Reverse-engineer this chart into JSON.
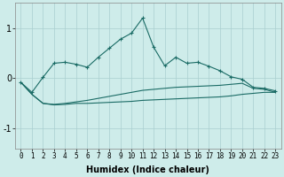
{
  "xlabel": "Humidex (Indice chaleur)",
  "background_color": "#ceecea",
  "grid_color": "#aacfcf",
  "line_color": "#1a6b65",
  "x": [
    0,
    1,
    2,
    3,
    4,
    5,
    6,
    7,
    8,
    9,
    10,
    11,
    12,
    13,
    14,
    15,
    16,
    17,
    18,
    19,
    20,
    21,
    22,
    23
  ],
  "line1": [
    -0.08,
    -0.28,
    0.02,
    0.3,
    0.32,
    0.28,
    0.22,
    0.42,
    0.6,
    0.78,
    0.9,
    1.2,
    0.62,
    0.25,
    0.42,
    0.3,
    0.32,
    0.24,
    0.15,
    0.03,
    -0.02,
    -0.18,
    -0.2,
    -0.25
  ],
  "line2": [
    -0.08,
    -0.32,
    -0.5,
    -0.52,
    -0.5,
    -0.47,
    -0.44,
    -0.4,
    -0.36,
    -0.32,
    -0.28,
    -0.24,
    -0.22,
    -0.2,
    -0.18,
    -0.17,
    -0.16,
    -0.15,
    -0.14,
    -0.12,
    -0.1,
    -0.2,
    -0.22,
    -0.28
  ],
  "line3": [
    -0.08,
    -0.32,
    -0.5,
    -0.53,
    -0.52,
    -0.5,
    -0.5,
    -0.49,
    -0.48,
    -0.47,
    -0.46,
    -0.44,
    -0.43,
    -0.42,
    -0.41,
    -0.4,
    -0.39,
    -0.38,
    -0.37,
    -0.35,
    -0.32,
    -0.3,
    -0.28,
    -0.28
  ],
  "xlim": [
    -0.5,
    23.5
  ],
  "ylim": [
    -1.4,
    1.5
  ],
  "yticks": [
    -1,
    0,
    1
  ],
  "xticks": [
    0,
    1,
    2,
    3,
    4,
    5,
    6,
    7,
    8,
    9,
    10,
    11,
    12,
    13,
    14,
    15,
    16,
    17,
    18,
    19,
    20,
    21,
    22,
    23
  ],
  "tick_fontsize": 5.5,
  "xlabel_fontsize": 7,
  "ytick_fontsize": 7
}
